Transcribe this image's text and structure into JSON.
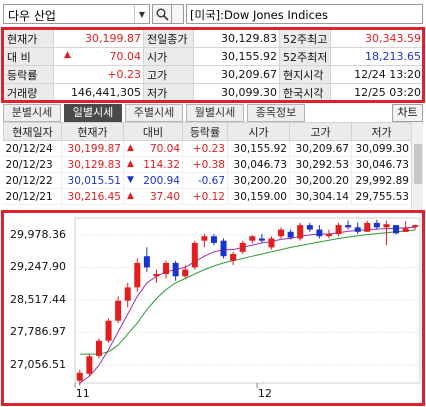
{
  "search": {
    "market": "다우 산업",
    "index_name": "[미국]:Dow Jones Indices"
  },
  "quote": {
    "rows": [
      [
        {
          "label": "현재가",
          "value": "30,199.87",
          "color": "red"
        },
        {
          "label": "전일종가",
          "value": "30,129.83"
        },
        {
          "label": "52주최고",
          "value": "30,343.59",
          "color": "red"
        }
      ],
      [
        {
          "label": "대  비",
          "value": "70.04",
          "color": "red",
          "arrow": "up"
        },
        {
          "label": "시가",
          "value": "30,155.92"
        },
        {
          "label": "52주최저",
          "value": "18,213.65",
          "color": "blue"
        }
      ],
      [
        {
          "label": "등락률",
          "value": "+0.23",
          "color": "red"
        },
        {
          "label": "고가",
          "value": "30,209.67"
        },
        {
          "label": "현지시각",
          "value": "12/24 13:20"
        }
      ],
      [
        {
          "label": "거래량",
          "value": "146,441,305"
        },
        {
          "label": "저가",
          "value": "30,099.30"
        },
        {
          "label": "한국시각",
          "value": "12/25 03:20"
        }
      ]
    ]
  },
  "tabs": {
    "items": [
      "분별시세",
      "일별시세",
      "주별시세",
      "월별시세",
      "종목정보"
    ],
    "active": 1,
    "chart_button": "차트"
  },
  "daily": {
    "headers": [
      "현재일자",
      "현재가",
      "대비",
      "등락률",
      "시가",
      "고가",
      "저가"
    ],
    "rows": [
      {
        "date": "20/12/24",
        "price": "30,199.87",
        "dir": "up",
        "change": "70.04",
        "rate": "+0.23",
        "open": "30,155.92",
        "high": "30,209.67",
        "low": "30,099.30"
      },
      {
        "date": "20/12/23",
        "price": "30,129.83",
        "dir": "up",
        "change": "114.32",
        "rate": "+0.38",
        "open": "30,046.73",
        "high": "30,292.53",
        "low": "30,046.73"
      },
      {
        "date": "20/12/22",
        "price": "30,015.51",
        "dir": "down",
        "change": "200.94",
        "rate": "-0.67",
        "open": "30,200.20",
        "high": "30,200.20",
        "low": "29,992.89"
      },
      {
        "date": "20/12/21",
        "price": "30,216.45",
        "dir": "up",
        "change": "37.40",
        "rate": "+0.12",
        "open": "30,159.00",
        "high": "30,304.14",
        "low": "29,755.53"
      }
    ]
  },
  "colors": {
    "up": "#e21d1d",
    "down": "#1a33cc",
    "frame": "#e0202c",
    "ma1": "#9b2fb5",
    "ma2": "#2a9a35"
  },
  "chart_data": {
    "type": "candlestick",
    "y_ticks": [
      "29,978.36",
      "29,247.90",
      "28,517.44",
      "27,786.97",
      "27,056.51"
    ],
    "x_ticks": [
      "11",
      "12"
    ],
    "ylim": [
      26650,
      30360
    ],
    "candles": [
      {
        "o": 26700,
        "h": 26950,
        "l": 26600,
        "c": 26880
      },
      {
        "o": 26860,
        "h": 27300,
        "l": 26800,
        "c": 27250
      },
      {
        "o": 27260,
        "h": 27650,
        "l": 27200,
        "c": 27600
      },
      {
        "o": 27600,
        "h": 28100,
        "l": 27550,
        "c": 28050
      },
      {
        "o": 28050,
        "h": 28600,
        "l": 28000,
        "c": 28500
      },
      {
        "o": 28500,
        "h": 28900,
        "l": 28350,
        "c": 28800
      },
      {
        "o": 28800,
        "h": 29450,
        "l": 28700,
        "c": 29350
      },
      {
        "o": 29500,
        "h": 29700,
        "l": 29150,
        "c": 29250
      },
      {
        "o": 29050,
        "h": 29200,
        "l": 28900,
        "c": 29100
      },
      {
        "o": 29100,
        "h": 29400,
        "l": 29000,
        "c": 29350
      },
      {
        "o": 29350,
        "h": 29400,
        "l": 28950,
        "c": 29050
      },
      {
        "o": 29050,
        "h": 29300,
        "l": 29000,
        "c": 29200
      },
      {
        "o": 29250,
        "h": 29850,
        "l": 29200,
        "c": 29800
      },
      {
        "o": 29850,
        "h": 30000,
        "l": 29700,
        "c": 29950
      },
      {
        "o": 29950,
        "h": 30000,
        "l": 29750,
        "c": 29800
      },
      {
        "o": 29850,
        "h": 29900,
        "l": 29450,
        "c": 29500
      },
      {
        "o": 29400,
        "h": 29600,
        "l": 29300,
        "c": 29550
      },
      {
        "o": 29600,
        "h": 29850,
        "l": 29550,
        "c": 29800
      },
      {
        "o": 29850,
        "h": 29980,
        "l": 29800,
        "c": 29950
      },
      {
        "o": 29900,
        "h": 30000,
        "l": 29800,
        "c": 29850
      },
      {
        "o": 29700,
        "h": 29950,
        "l": 29650,
        "c": 29900
      },
      {
        "o": 29950,
        "h": 30150,
        "l": 29900,
        "c": 30100
      },
      {
        "o": 30050,
        "h": 30100,
        "l": 29880,
        "c": 29920
      },
      {
        "o": 29900,
        "h": 30250,
        "l": 29850,
        "c": 30200
      },
      {
        "o": 30200,
        "h": 30250,
        "l": 30050,
        "c": 30100
      },
      {
        "o": 30100,
        "h": 30200,
        "l": 29900,
        "c": 29950
      },
      {
        "o": 29950,
        "h": 30100,
        "l": 29900,
        "c": 30000
      },
      {
        "o": 30000,
        "h": 30250,
        "l": 29950,
        "c": 30200
      },
      {
        "o": 30200,
        "h": 30300,
        "l": 30100,
        "c": 30150
      },
      {
        "o": 30150,
        "h": 30260,
        "l": 30000,
        "c": 30050
      },
      {
        "o": 30050,
        "h": 30300,
        "l": 30050,
        "c": 30250
      },
      {
        "o": 30250,
        "h": 30320,
        "l": 30100,
        "c": 30150
      },
      {
        "o": 30150,
        "h": 30300,
        "l": 29750,
        "c": 30220
      },
      {
        "o": 30200,
        "h": 30200,
        "l": 29990,
        "c": 30016
      },
      {
        "o": 30047,
        "h": 30293,
        "l": 30047,
        "c": 30130
      },
      {
        "o": 30156,
        "h": 30210,
        "l": 30099,
        "c": 30200
      }
    ],
    "ma_short": [
      26650,
      26800,
      27050,
      27400,
      27800,
      28200,
      28600,
      28900,
      29050,
      29150,
      29200,
      29250,
      29380,
      29500,
      29600,
      29650,
      29650,
      29700,
      29750,
      29800,
      29830,
      29880,
      29900,
      29950,
      29980,
      30000,
      30000,
      30030,
      30060,
      30080,
      30100,
      30110,
      30120,
      30130,
      30140,
      30150
    ],
    "ma_long": [
      27300,
      27300,
      27300,
      27350,
      27500,
      27750,
      28000,
      28300,
      28550,
      28750,
      28900,
      29000,
      29100,
      29200,
      29280,
      29350,
      29400,
      29450,
      29500,
      29550,
      29600,
      29650,
      29700,
      29740,
      29780,
      29820,
      29860,
      29900,
      29930,
      29960,
      29990,
      30010,
      30030,
      30050,
      30070,
      30090
    ]
  }
}
